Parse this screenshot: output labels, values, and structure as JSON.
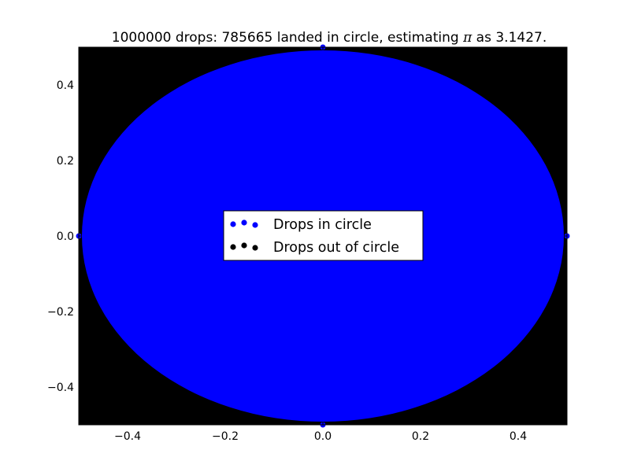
{
  "chart_data": {
    "type": "scatter",
    "title_parts": [
      "1000000 drops: 785665 landed in circle, estimating ",
      "π",
      " as 3.1427."
    ],
    "xlabel": "",
    "ylabel": "",
    "xlim": [
      -0.5,
      0.5
    ],
    "ylim": [
      -0.5,
      0.5
    ],
    "xticks": [
      -0.4,
      -0.2,
      0.0,
      0.2,
      0.4
    ],
    "yticks": [
      -0.4,
      -0.2,
      0.0,
      0.2,
      0.4
    ],
    "xtick_labels": [
      "−0.4",
      "−0.2",
      "0.0",
      "0.2",
      "0.4"
    ],
    "ytick_labels": [
      "−0.4",
      "−0.2",
      "0.0",
      "0.2",
      "0.4"
    ],
    "grid": false,
    "legend_position": "center",
    "drops_total": 1000000,
    "drops_in_circle": 785665,
    "pi_estimate": 3.1427,
    "circle": {
      "center": [
        0,
        0
      ],
      "radius": 0.5
    },
    "series": [
      {
        "name": "Drops in circle",
        "color": "#0000ff",
        "region": "inside circle"
      },
      {
        "name": "Drops out of circle",
        "color": "#000000",
        "region": "outside circle"
      }
    ]
  }
}
